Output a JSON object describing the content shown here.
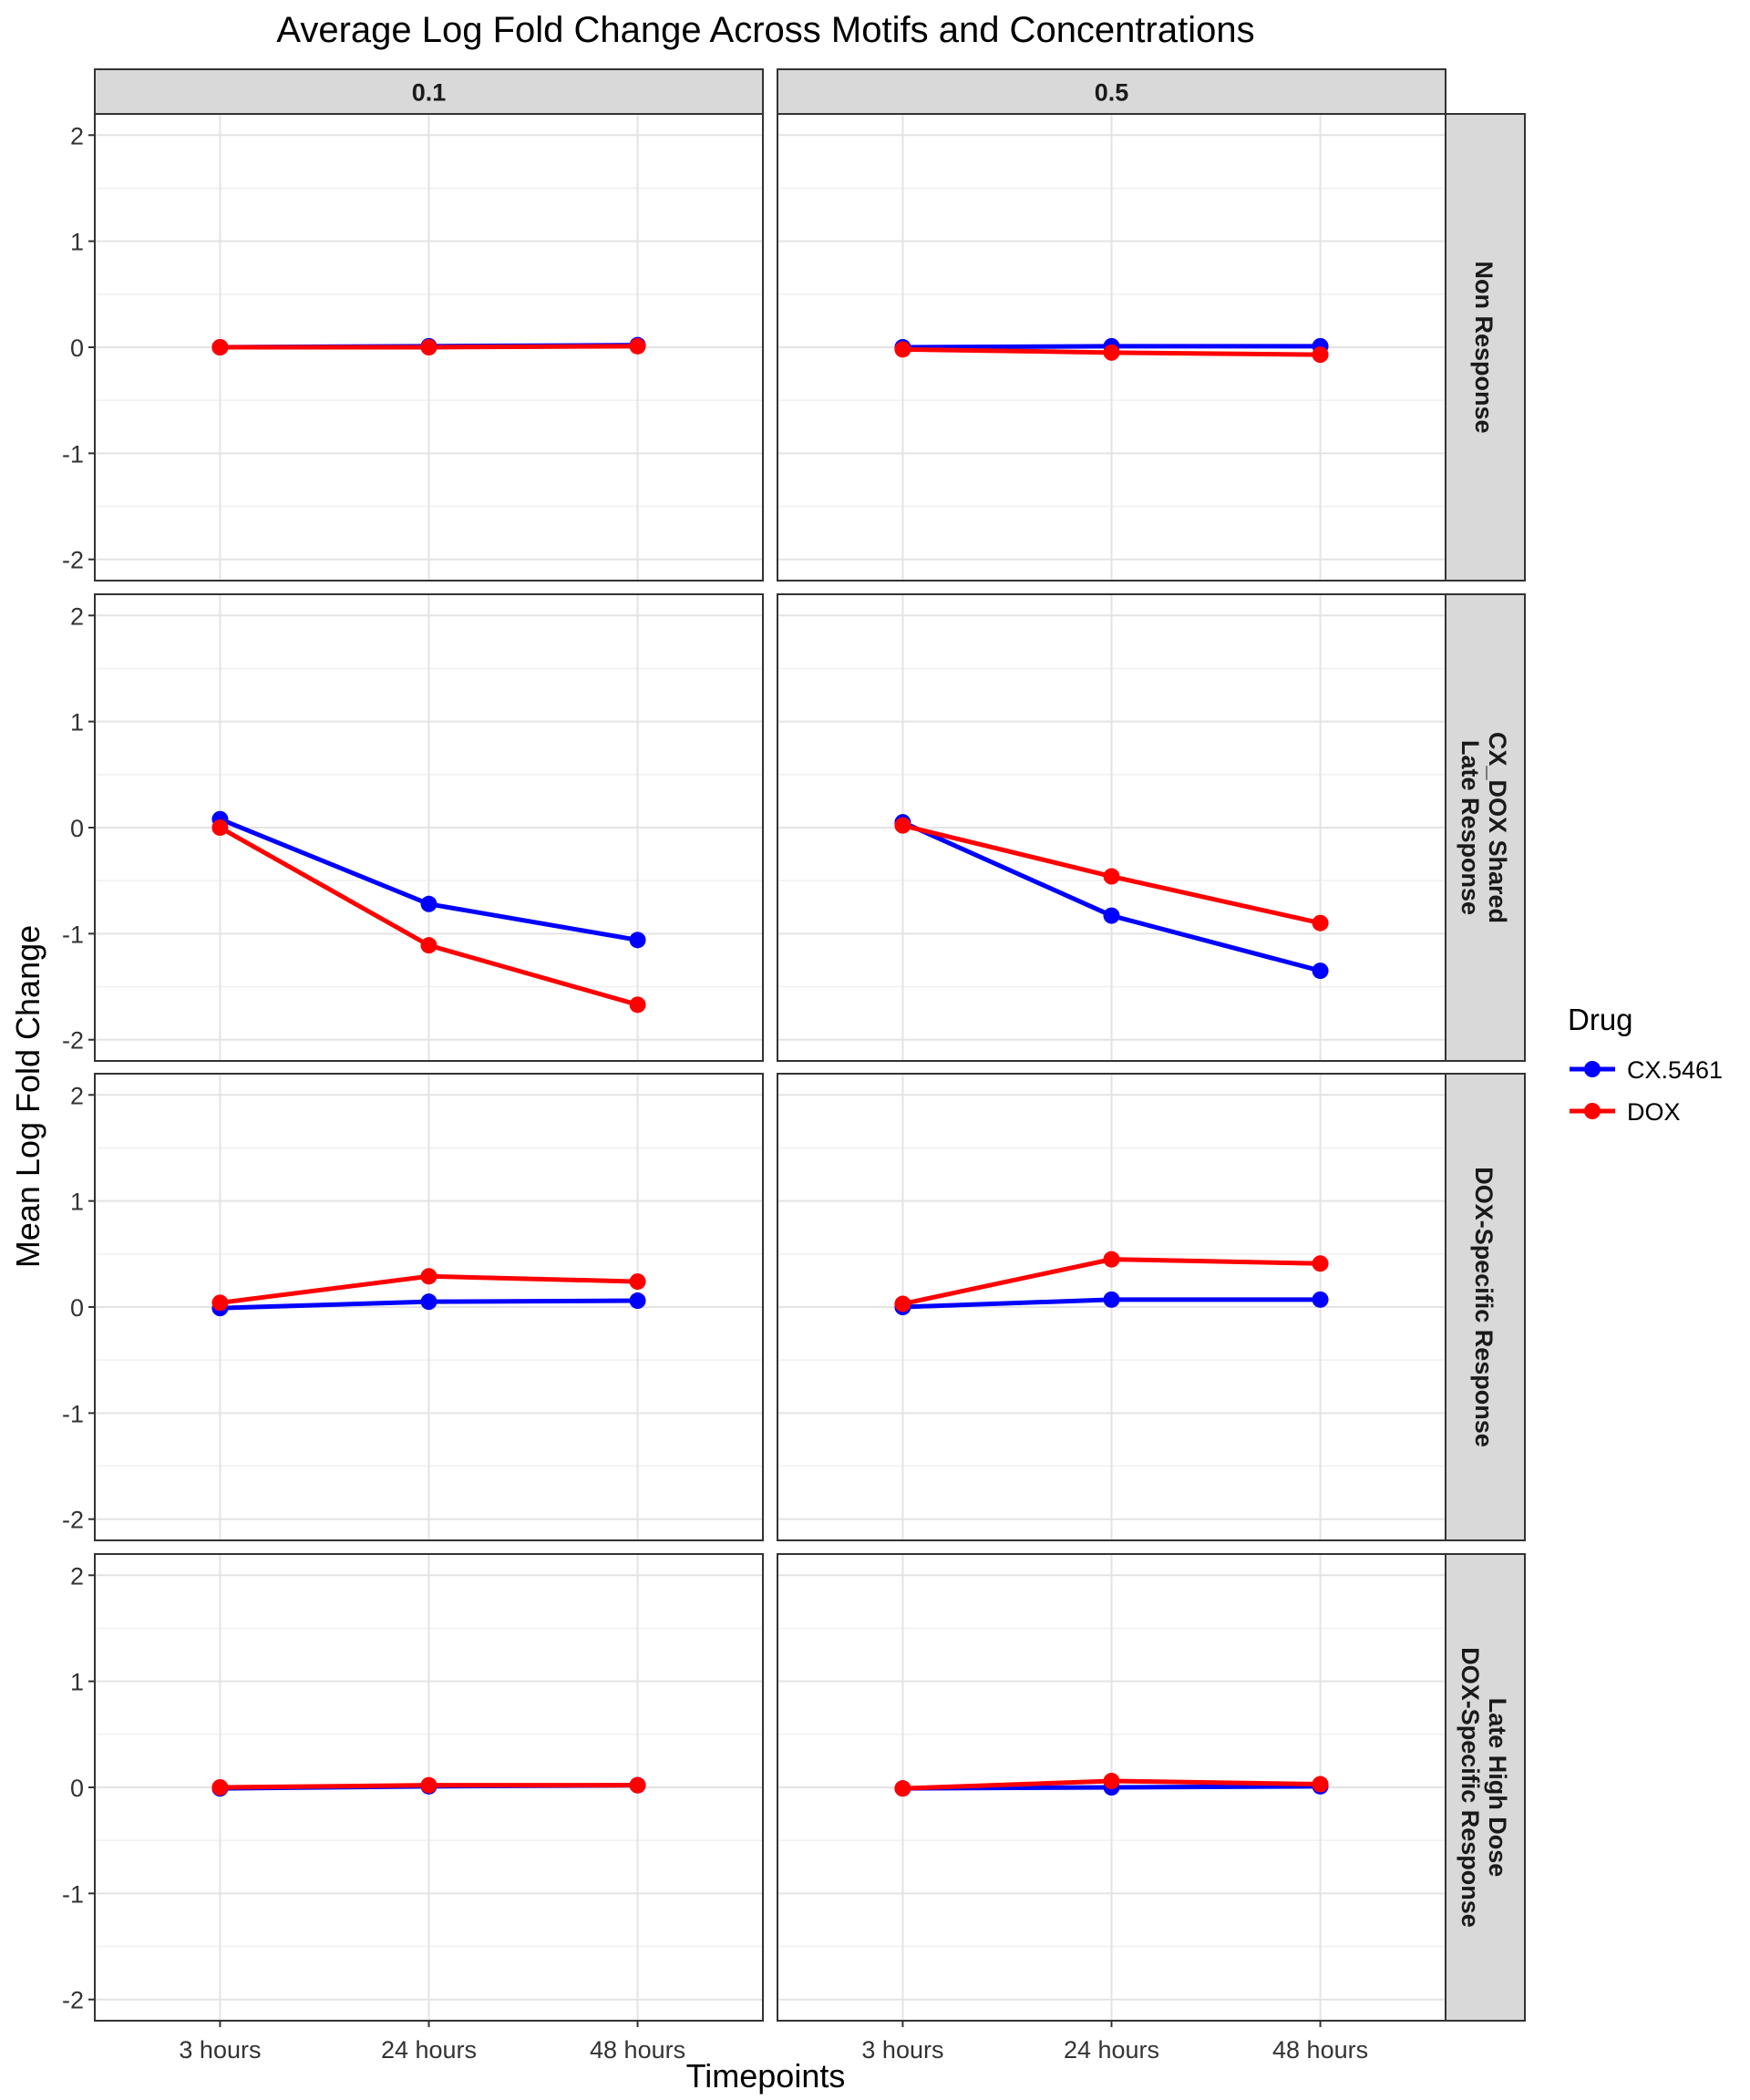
{
  "chart_data": {
    "type": "line",
    "title": "Average Log Fold Change Across Motifs and Concentrations",
    "xlabel": "Timepoints",
    "ylabel": "Mean Log Fold Change",
    "categories": [
      "3 hours",
      "24 hours",
      "48 hours"
    ],
    "ylim": [
      -2.2,
      2.2
    ],
    "yticks": [
      -2,
      -1,
      0,
      1,
      2
    ],
    "grid": true,
    "legend": {
      "title": "Drug",
      "placement": "right",
      "entries": [
        {
          "name": "CX.5461",
          "color": "#0000FF"
        },
        {
          "name": "DOX",
          "color": "#FF0000"
        }
      ]
    },
    "col_facets": [
      "0.1",
      "0.5"
    ],
    "row_facets": [
      {
        "label_lines": [
          "Non Response"
        ]
      },
      {
        "label_lines": [
          "CX_DOX Shared",
          "Late Response"
        ]
      },
      {
        "label_lines": [
          "DOX-Specific Response"
        ]
      },
      {
        "label_lines": [
          "Late High Dose",
          "DOX-Specific Response"
        ]
      }
    ],
    "panels": [
      [
        {
          "series": [
            {
              "name": "CX.5461",
              "values": [
                0.0,
                0.01,
                0.02
              ]
            },
            {
              "name": "DOX",
              "values": [
                0.0,
                0.0,
                0.01
              ]
            }
          ]
        },
        {
          "series": [
            {
              "name": "CX.5461",
              "values": [
                0.0,
                0.01,
                0.01
              ]
            },
            {
              "name": "DOX",
              "values": [
                -0.02,
                -0.05,
                -0.07
              ]
            }
          ]
        }
      ],
      [
        {
          "series": [
            {
              "name": "CX.5461",
              "values": [
                0.08,
                -0.72,
                -1.06
              ]
            },
            {
              "name": "DOX",
              "values": [
                0.0,
                -1.11,
                -1.67
              ]
            }
          ]
        },
        {
          "series": [
            {
              "name": "CX.5461",
              "values": [
                0.05,
                -0.83,
                -1.35
              ]
            },
            {
              "name": "DOX",
              "values": [
                0.02,
                -0.46,
                -0.9
              ]
            }
          ]
        }
      ],
      [
        {
          "series": [
            {
              "name": "CX.5461",
              "values": [
                -0.01,
                0.05,
                0.06
              ]
            },
            {
              "name": "DOX",
              "values": [
                0.04,
                0.29,
                0.24
              ]
            }
          ]
        },
        {
          "series": [
            {
              "name": "CX.5461",
              "values": [
                0.0,
                0.07,
                0.07
              ]
            },
            {
              "name": "DOX",
              "values": [
                0.03,
                0.45,
                0.41
              ]
            }
          ]
        }
      ],
      [
        {
          "series": [
            {
              "name": "CX.5461",
              "values": [
                -0.01,
                0.01,
                0.02
              ]
            },
            {
              "name": "DOX",
              "values": [
                0.0,
                0.02,
                0.02
              ]
            }
          ]
        },
        {
          "series": [
            {
              "name": "CX.5461",
              "values": [
                -0.01,
                0.0,
                0.01
              ]
            },
            {
              "name": "DOX",
              "values": [
                -0.01,
                0.06,
                0.03
              ]
            }
          ]
        }
      ]
    ]
  }
}
